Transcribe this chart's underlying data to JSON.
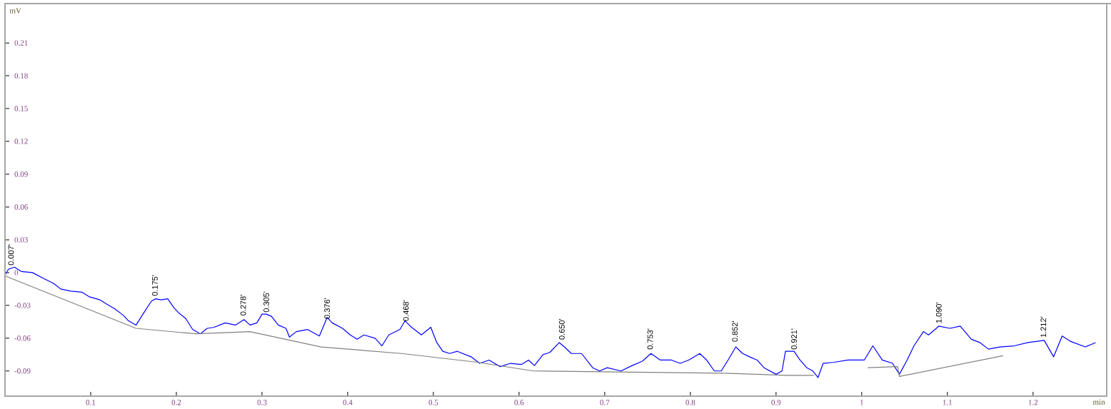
{
  "chart_data": {
    "type": "line",
    "xlabel": "min",
    "ylabel": "mV",
    "xlim": [
      0,
      1.286
    ],
    "ylim": [
      -0.113,
      0.246
    ],
    "xticks": [
      0.1,
      0.2,
      0.3,
      0.4,
      0.5,
      0.6,
      0.7,
      0.8,
      0.9,
      1,
      1.1,
      1.2
    ],
    "yticks": [
      -0.09,
      -0.06,
      -0.03,
      0,
      0.03,
      0.06,
      0.09,
      0.12,
      0.15,
      0.18,
      0.21
    ],
    "grid": false,
    "marker": "none",
    "line_style": "solid",
    "series": [
      {
        "color": "#0000ff",
        "x": [
          0.0,
          0.004,
          0.011,
          0.019,
          0.032,
          0.044,
          0.057,
          0.065,
          0.077,
          0.09,
          0.098,
          0.111,
          0.119,
          0.128,
          0.138,
          0.144,
          0.153,
          0.161,
          0.171,
          0.176,
          0.182,
          0.19,
          0.197,
          0.203,
          0.211,
          0.219,
          0.228,
          0.236,
          0.244,
          0.257,
          0.269,
          0.279,
          0.286,
          0.294,
          0.3,
          0.305,
          0.311,
          0.319,
          0.328,
          0.332,
          0.34,
          0.353,
          0.367,
          0.376,
          0.382,
          0.394,
          0.403,
          0.411,
          0.419,
          0.432,
          0.44,
          0.448,
          0.461,
          0.467,
          0.473,
          0.486,
          0.497,
          0.504,
          0.511,
          0.519,
          0.528,
          0.544,
          0.554,
          0.565,
          0.578,
          0.59,
          0.603,
          0.611,
          0.618,
          0.628,
          0.636,
          0.647,
          0.653,
          0.661,
          0.673,
          0.686,
          0.694,
          0.703,
          0.719,
          0.732,
          0.744,
          0.754,
          0.765,
          0.778,
          0.788,
          0.798,
          0.811,
          0.819,
          0.828,
          0.836,
          0.844,
          0.853,
          0.861,
          0.869,
          0.878,
          0.886,
          0.9,
          0.907,
          0.911,
          0.921,
          0.928,
          0.936,
          0.943,
          0.949,
          0.955,
          0.968,
          0.984,
          1.003,
          1.013,
          1.024,
          1.036,
          1.044,
          1.053,
          1.061,
          1.072,
          1.078,
          1.09,
          1.103,
          1.115,
          1.128,
          1.138,
          1.148,
          1.161,
          1.178,
          1.194,
          1.213,
          1.224,
          1.234,
          1.244,
          1.261,
          1.273
        ],
        "values": [
          -0.002,
          0.003,
          0.005,
          0.001,
          0.0,
          -0.005,
          -0.01,
          -0.015,
          -0.017,
          -0.018,
          -0.022,
          -0.025,
          -0.029,
          -0.033,
          -0.039,
          -0.044,
          -0.048,
          -0.038,
          -0.026,
          -0.024,
          -0.025,
          -0.024,
          -0.032,
          -0.037,
          -0.042,
          -0.052,
          -0.056,
          -0.051,
          -0.05,
          -0.046,
          -0.048,
          -0.043,
          -0.048,
          -0.046,
          -0.038,
          -0.038,
          -0.04,
          -0.048,
          -0.051,
          -0.059,
          -0.054,
          -0.052,
          -0.058,
          -0.041,
          -0.046,
          -0.051,
          -0.057,
          -0.061,
          -0.057,
          -0.06,
          -0.067,
          -0.057,
          -0.052,
          -0.044,
          -0.049,
          -0.057,
          -0.05,
          -0.064,
          -0.072,
          -0.074,
          -0.072,
          -0.077,
          -0.083,
          -0.08,
          -0.086,
          -0.083,
          -0.084,
          -0.08,
          -0.085,
          -0.075,
          -0.073,
          -0.064,
          -0.068,
          -0.074,
          -0.074,
          -0.087,
          -0.09,
          -0.087,
          -0.09,
          -0.085,
          -0.081,
          -0.074,
          -0.08,
          -0.08,
          -0.083,
          -0.08,
          -0.074,
          -0.08,
          -0.09,
          -0.09,
          -0.08,
          -0.068,
          -0.074,
          -0.077,
          -0.08,
          -0.087,
          -0.093,
          -0.09,
          -0.072,
          -0.072,
          -0.08,
          -0.087,
          -0.09,
          -0.096,
          -0.083,
          -0.082,
          -0.08,
          -0.08,
          -0.067,
          -0.08,
          -0.083,
          -0.093,
          -0.08,
          -0.067,
          -0.054,
          -0.057,
          -0.049,
          -0.051,
          -0.049,
          -0.061,
          -0.064,
          -0.07,
          -0.068,
          -0.067,
          -0.064,
          -0.062,
          -0.077,
          -0.058,
          -0.063,
          -0.068,
          -0.064
        ]
      },
      {
        "color": "#808080",
        "x": [
          0.0,
          0.153,
          0.223,
          0.286,
          0.369,
          0.463,
          0.551,
          0.617,
          0.838,
          0.913,
          0.944,
          0.95,
          1.007,
          1.042,
          1.044,
          1.165
        ],
        "values": [
          -0.003,
          -0.051,
          -0.056,
          -0.054,
          -0.068,
          -0.074,
          -0.082,
          -0.09,
          -0.092,
          -0.094,
          -0.094,
          null,
          -0.087,
          -0.086,
          -0.095,
          -0.076
        ]
      }
    ],
    "annotations": [
      {
        "text": "0.007'",
        "x": 0.007,
        "y": 0.005
      },
      {
        "text": "0.175'",
        "x": 0.175,
        "y": -0.023
      },
      {
        "text": "0.278'",
        "x": 0.278,
        "y": -0.041
      },
      {
        "text": "0.305'",
        "x": 0.305,
        "y": -0.038
      },
      {
        "text": "0.376'",
        "x": 0.376,
        "y": -0.044
      },
      {
        "text": "0.468'",
        "x": 0.468,
        "y": -0.046
      },
      {
        "text": "0.650'",
        "x": 0.65,
        "y": -0.063
      },
      {
        "text": "0.753'",
        "x": 0.753,
        "y": -0.072
      },
      {
        "text": "0.852'",
        "x": 0.852,
        "y": -0.065
      },
      {
        "text": "0.921'",
        "x": 0.921,
        "y": -0.072
      },
      {
        "text": "1.090'",
        "x": 1.09,
        "y": -0.048
      },
      {
        "text": "1.212'",
        "x": 1.212,
        "y": -0.061
      }
    ]
  }
}
